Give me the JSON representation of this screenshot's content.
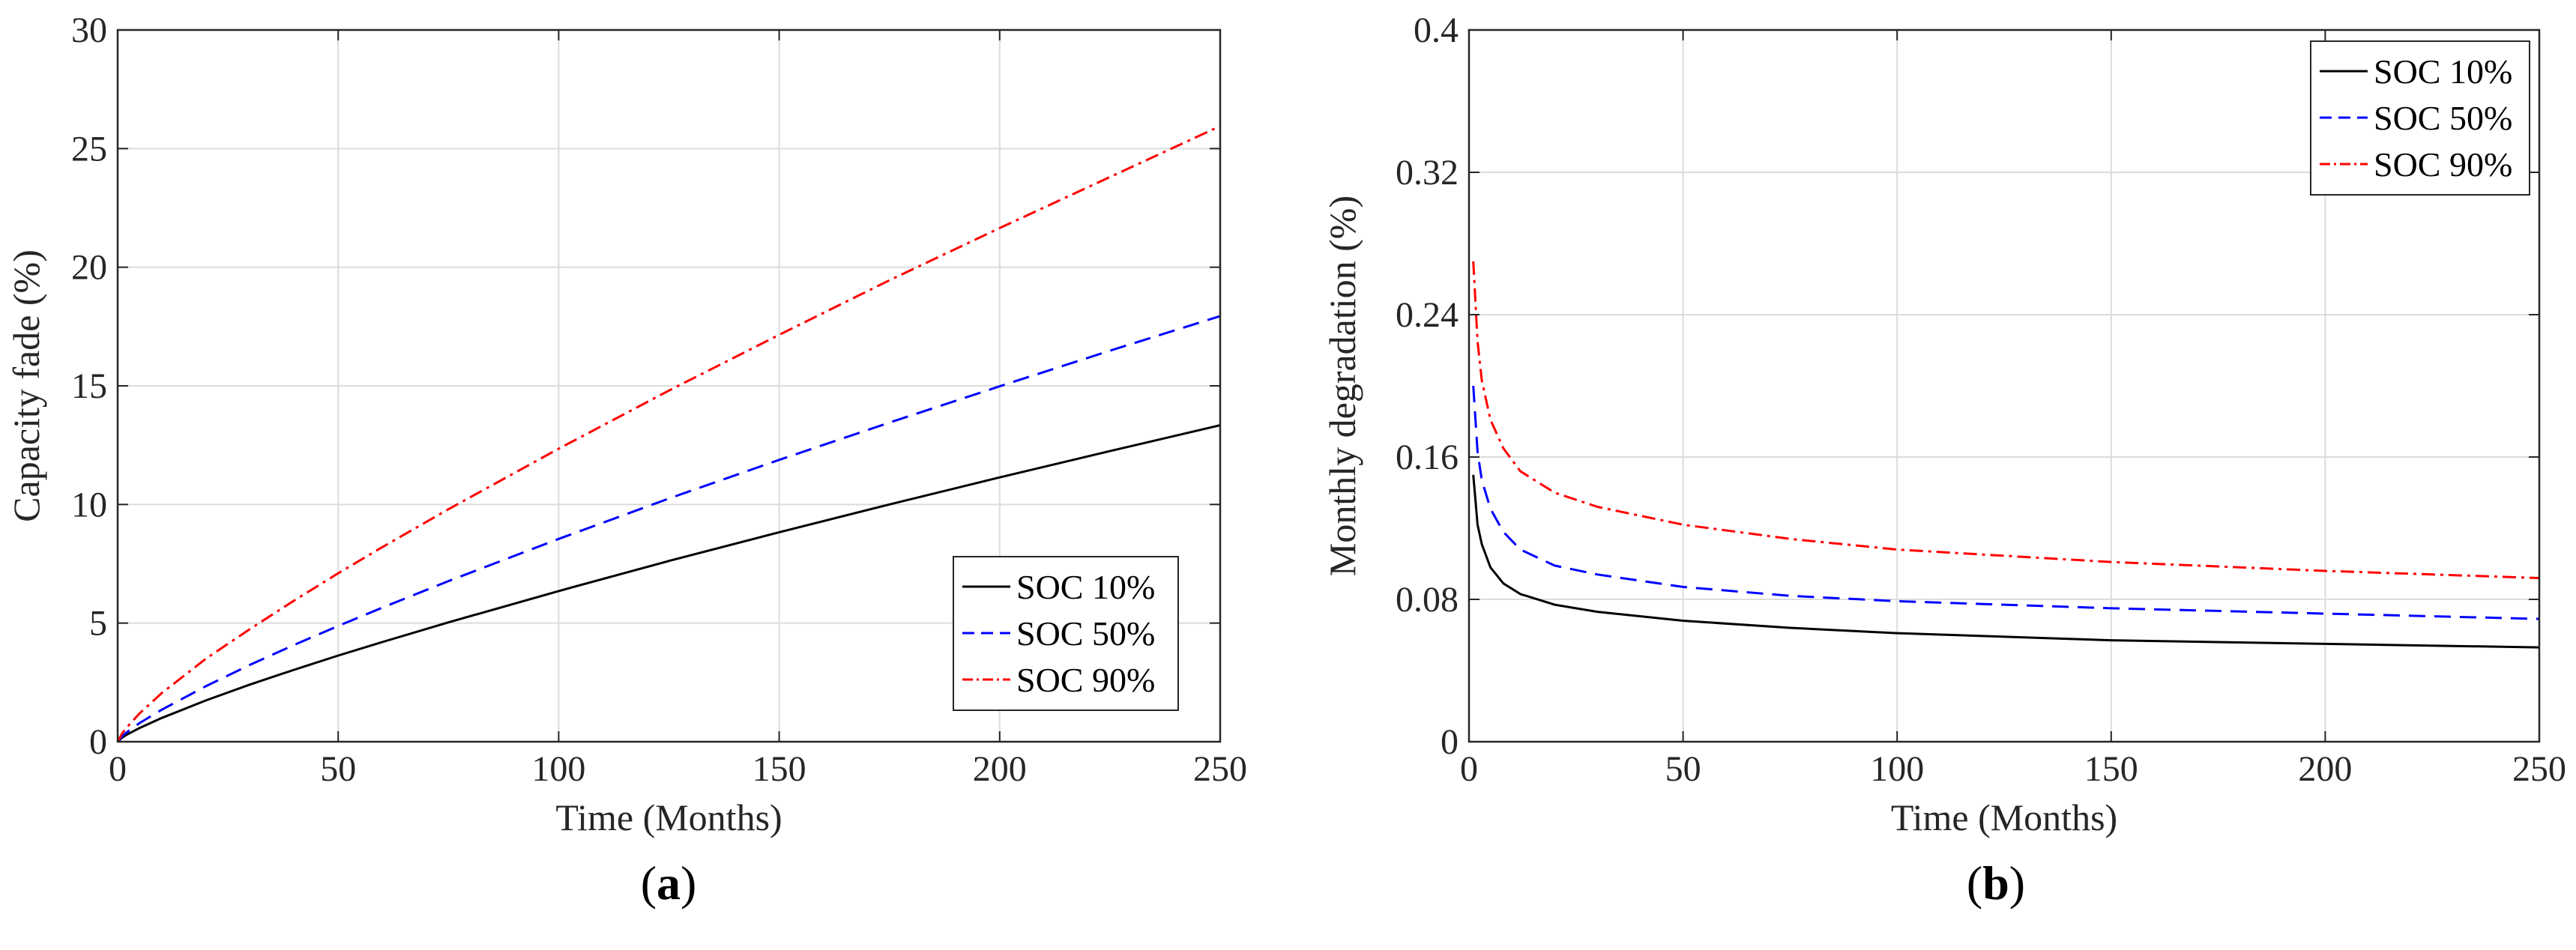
{
  "chart_data": [
    {
      "type": "line",
      "panel_label": "a",
      "title": "",
      "xlabel": "Time (Months)",
      "ylabel": "Capacity fade (%)",
      "xlim": [
        0,
        250
      ],
      "ylim": [
        0,
        30
      ],
      "xticks": [
        0,
        50,
        100,
        150,
        200,
        250
      ],
      "yticks": [
        0,
        5,
        10,
        15,
        20,
        25,
        30
      ],
      "grid": true,
      "legend_position": "bottom-right",
      "x": [
        0,
        1,
        2,
        5,
        10,
        20,
        30,
        40,
        50,
        60,
        75,
        100,
        125,
        150,
        175,
        200,
        225,
        250
      ],
      "series": [
        {
          "name": "SOC 10%",
          "color": "#000000",
          "dash": "solid",
          "values": [
            0,
            0.17,
            0.29,
            0.58,
            1.0,
            1.74,
            2.41,
            3.03,
            3.63,
            4.2,
            5.03,
            6.35,
            7.62,
            8.83,
            10.0,
            11.14,
            12.25,
            13.34
          ]
        },
        {
          "name": "SOC 50%",
          "color": "#0000ff",
          "dash": "dashed",
          "values": [
            0,
            0.23,
            0.39,
            0.79,
            1.35,
            2.34,
            3.24,
            4.08,
            4.88,
            5.65,
            6.77,
            8.55,
            10.25,
            11.88,
            13.45,
            14.98,
            16.48,
            17.94
          ]
        },
        {
          "name": "SOC 90%",
          "color": "#ff0000",
          "dash": "dashdot",
          "values": [
            0,
            0.35,
            0.59,
            1.2,
            2.05,
            3.5,
            4.75,
            5.95,
            7.1,
            8.2,
            9.8,
            12.35,
            14.8,
            17.15,
            19.45,
            21.65,
            23.8,
            25.95
          ]
        }
      ]
    },
    {
      "type": "line",
      "panel_label": "b",
      "title": "",
      "xlabel": "Time (Months)",
      "ylabel": "Monthly degradation (%)",
      "xlim": [
        0,
        250
      ],
      "ylim": [
        0,
        0.4
      ],
      "xticks": [
        0,
        50,
        100,
        150,
        200,
        250
      ],
      "yticks": [
        0,
        0.08,
        0.16,
        0.24,
        0.32,
        0.4
      ],
      "grid": true,
      "legend_position": "top-right",
      "x": [
        1,
        2,
        3,
        5,
        8,
        12,
        20,
        30,
        50,
        75,
        100,
        150,
        200,
        250
      ],
      "series": [
        {
          "name": "SOC 10%",
          "color": "#000000",
          "dash": "solid",
          "values": [
            0.15,
            0.122,
            0.111,
            0.098,
            0.089,
            0.083,
            0.077,
            0.073,
            0.068,
            0.064,
            0.061,
            0.057,
            0.055,
            0.053
          ]
        },
        {
          "name": "SOC 50%",
          "color": "#0000ff",
          "dash": "dashed",
          "values": [
            0.2,
            0.163,
            0.147,
            0.131,
            0.118,
            0.108,
            0.099,
            0.094,
            0.087,
            0.082,
            0.079,
            0.075,
            0.072,
            0.069
          ]
        },
        {
          "name": "SOC 90%",
          "color": "#ff0000",
          "dash": "dashdot",
          "values": [
            0.27,
            0.225,
            0.203,
            0.181,
            0.165,
            0.152,
            0.14,
            0.132,
            0.122,
            0.114,
            0.108,
            0.101,
            0.096,
            0.092
          ]
        }
      ]
    }
  ]
}
